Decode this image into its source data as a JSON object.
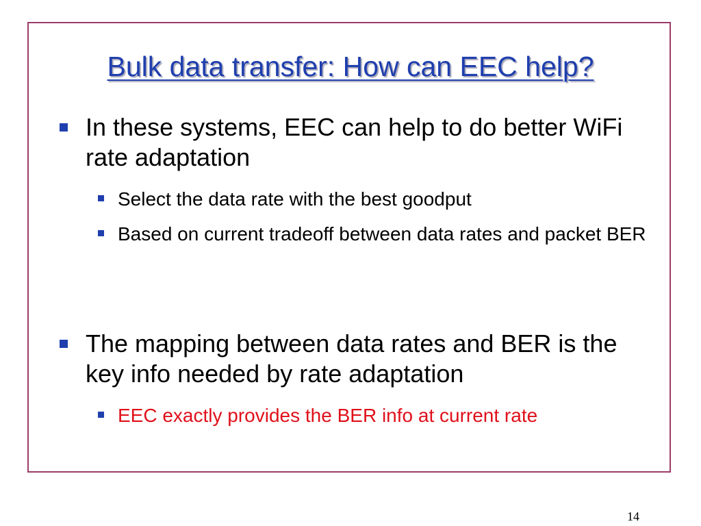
{
  "slide": {
    "title": "Bulk data transfer: How can EEC help?",
    "bullets": [
      {
        "text": "In these systems, EEC can help to do better WiFi rate adaptation",
        "sub": [
          "Select the data rate with the best goodput",
          "Based on current tradeoff between data rates and packet BER"
        ]
      },
      {
        "text": "The mapping between data rates and BER is the key info needed by rate adaptation",
        "sub": [
          "EEC exactly provides the BER info at current rate"
        ]
      }
    ],
    "page_number": "14",
    "colors": {
      "title": "#1f3fae",
      "border": "#9b3b68",
      "highlight": "#e0101a"
    }
  }
}
